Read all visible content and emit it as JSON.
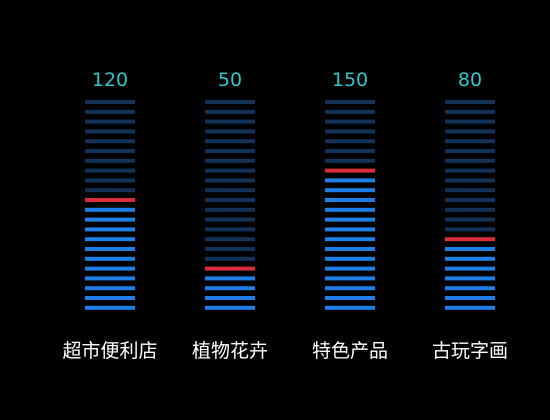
{
  "chart_data": {
    "type": "bar",
    "style": "segmented-vertical-bar",
    "categories": [
      "超市便利店",
      "植物花卉",
      "特色产品",
      "古玩字画"
    ],
    "values": [
      120,
      50,
      150,
      80
    ],
    "value_labels": [
      "120",
      "50",
      "150",
      "80"
    ],
    "ylim": [
      0,
      220
    ],
    "segments_per_bar": 22,
    "grid": false,
    "legend": "none"
  },
  "colors": {
    "background": "#000000",
    "segment_filled": "#1e7fe6",
    "segment_empty": "#123357",
    "segment_top_marker": "#d92e3a",
    "value_text": "#31c4c8",
    "category_text": "#ffffff"
  }
}
